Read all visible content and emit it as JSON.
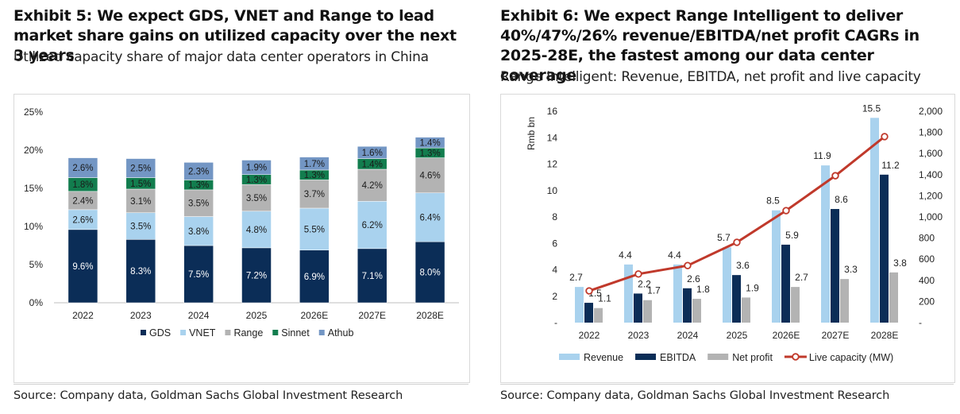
{
  "exhibit5": {
    "title": "Exhibit 5: We expect GDS, VNET and Range to lead market share gains on utilized capacity over the next 3 years",
    "subtitle": "Utilized capacity share of major data center operators in China",
    "source": "Source: Company data, Goldman Sachs Global Investment Research"
  },
  "exhibit6": {
    "title": "Exhibit 6: We expect Range Intelligent to deliver 40%/47%/26% revenue/EBITDA/net profit CAGRs in 2025-28E, the fastest among our data center coverage",
    "subtitle": "Range Intelligent: Revenue, EBITDA, net profit and live capacity",
    "source": "Source: Company data, Goldman Sachs Global Investment Research"
  },
  "chart_data": [
    {
      "type": "bar",
      "stacked": true,
      "categories": [
        "2022",
        "2023",
        "2024",
        "2025",
        "2026E",
        "2027E",
        "2028E"
      ],
      "ylim": [
        0,
        25
      ],
      "yticks": [
        0,
        5,
        10,
        15,
        20,
        25
      ],
      "ytick_labels": [
        "0%",
        "5%",
        "10%",
        "15%",
        "20%",
        "25%"
      ],
      "grid": false,
      "legend_position": "bottom",
      "series": [
        {
          "name": "GDS",
          "color": "#0b2d57",
          "values": [
            9.6,
            8.3,
            7.5,
            7.2,
            6.9,
            7.1,
            8.0
          ],
          "labels": [
            "9.6%",
            "8.3%",
            "7.5%",
            "7.2%",
            "6.9%",
            "7.1%",
            "8.0%"
          ],
          "label_color": "#ffffff"
        },
        {
          "name": "VNET",
          "color": "#a9d2ee",
          "values": [
            2.6,
            3.5,
            3.8,
            4.8,
            5.5,
            6.2,
            6.4
          ],
          "labels": [
            "2.6%",
            "3.5%",
            "3.8%",
            "4.8%",
            "5.5%",
            "6.2%",
            "6.4%"
          ],
          "label_color": "#1a1a1a"
        },
        {
          "name": "Range",
          "color": "#b3b3b3",
          "values": [
            2.4,
            3.1,
            3.5,
            3.5,
            3.7,
            4.2,
            4.6
          ],
          "labels": [
            "2.4%",
            "3.1%",
            "3.5%",
            "3.5%",
            "3.7%",
            "4.2%",
            "4.6%"
          ],
          "label_color": "#1a1a1a"
        },
        {
          "name": "Sinnet",
          "color": "#127d4e",
          "values": [
            1.8,
            1.5,
            1.3,
            1.3,
            1.3,
            1.4,
            1.3
          ],
          "labels": [
            "1.8%",
            "1.5%",
            "1.3%",
            "1.3%",
            "1.3%",
            "1.4%",
            "1.3%"
          ],
          "label_color": "#1a1a1a"
        },
        {
          "name": "Athub",
          "color": "#7396c4",
          "values": [
            2.6,
            2.5,
            2.3,
            1.9,
            1.7,
            1.6,
            1.4
          ],
          "labels": [
            "2.6%",
            "2.5%",
            "2.3%",
            "1.9%",
            "1.7%",
            "1.6%",
            "1.4%"
          ],
          "label_color": "#1a1a1a"
        }
      ]
    },
    {
      "type": "bar",
      "combo": "bar+line",
      "categories": [
        "2022",
        "2023",
        "2024",
        "2025",
        "2026E",
        "2027E",
        "2028E"
      ],
      "ylabel": "Rmb bn",
      "ylim": [
        0,
        16
      ],
      "yticks": [
        0,
        2,
        4,
        6,
        8,
        10,
        12,
        14,
        16
      ],
      "ytick_labels": [
        "-",
        "2",
        "4",
        "6",
        "8",
        "10",
        "12",
        "14",
        "16"
      ],
      "y2lim": [
        0,
        2000
      ],
      "y2ticks": [
        0,
        200,
        400,
        600,
        800,
        1000,
        1200,
        1400,
        1600,
        1800,
        2000
      ],
      "y2tick_labels": [
        "-",
        "200",
        "400",
        "600",
        "800",
        "1,000",
        "1,200",
        "1,400",
        "1,600",
        "1,800",
        "2,000"
      ],
      "grid": false,
      "legend_position": "bottom",
      "series": [
        {
          "name": "Revenue",
          "kind": "bar",
          "color": "#a9d2ee",
          "values": [
            2.7,
            4.4,
            4.4,
            5.7,
            8.5,
            11.9,
            15.5
          ],
          "labels": [
            "2.7",
            "4.4",
            "4.4",
            "5.7",
            "8.5",
            "11.9",
            "15.5"
          ]
        },
        {
          "name": "EBITDA",
          "kind": "bar",
          "color": "#0b2d57",
          "values": [
            1.5,
            2.2,
            2.6,
            3.6,
            5.9,
            8.6,
            11.2
          ],
          "labels": [
            "1.5",
            "2.2",
            "2.6",
            "3.6",
            "5.9",
            "8.6",
            "11.2"
          ]
        },
        {
          "name": "Net profit",
          "kind": "bar",
          "color": "#b3b3b3",
          "values": [
            1.1,
            1.7,
            1.8,
            1.9,
            2.7,
            3.3,
            3.8
          ],
          "labels": [
            "1.1",
            "1.7",
            "1.8",
            "1.9",
            "2.7",
            "3.3",
            "3.8"
          ]
        },
        {
          "name": "Live capacity (MW)",
          "kind": "line",
          "axis": "right",
          "color": "#c0392b",
          "values": [
            300,
            460,
            540,
            760,
            1060,
            1390,
            1760
          ]
        }
      ]
    }
  ]
}
